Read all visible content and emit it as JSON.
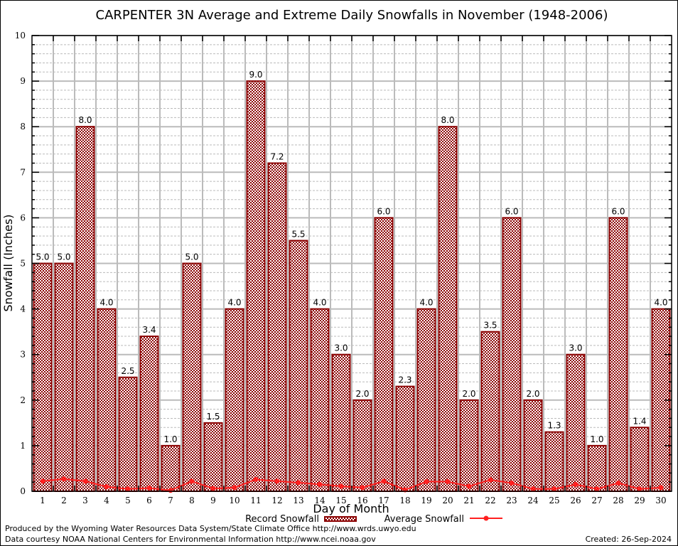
{
  "chart_data": {
    "type": "bar",
    "title": "CARPENTER 3N Average and Extreme Daily Snowfalls in November (1948-2006)",
    "xlabel": "Day of Month",
    "ylabel": "Snowfall (Inches)",
    "ylim": [
      0,
      10
    ],
    "yticks": [
      "0",
      "1",
      "2",
      "3",
      "4",
      "5",
      "6",
      "7",
      "8",
      "9",
      "10"
    ],
    "grid": true,
    "legend_position": "bottom",
    "categories": [
      "1",
      "2",
      "3",
      "4",
      "5",
      "6",
      "7",
      "8",
      "9",
      "10",
      "11",
      "12",
      "13",
      "14",
      "15",
      "16",
      "17",
      "18",
      "19",
      "20",
      "21",
      "22",
      "23",
      "24",
      "25",
      "26",
      "27",
      "28",
      "29",
      "30"
    ],
    "series": [
      {
        "name": "Record Snowfall",
        "type": "bar",
        "color": "#8b0000",
        "values": [
          5.0,
          5.0,
          8.0,
          4.0,
          2.5,
          3.4,
          1.0,
          5.0,
          1.5,
          4.0,
          9.0,
          7.2,
          5.5,
          4.0,
          3.0,
          2.0,
          6.0,
          2.3,
          4.0,
          8.0,
          2.0,
          3.5,
          6.0,
          2.0,
          1.3,
          3.0,
          1.0,
          6.0,
          1.4,
          4.0
        ],
        "labels": [
          "5.0",
          "5.0",
          "8.0",
          "4.0",
          "2.5",
          "3.4",
          "1.0",
          "5.0",
          "1.5",
          "4.0",
          "9.0",
          "7.2",
          "5.5",
          "4.0",
          "3.0",
          "2.0",
          "6.0",
          "2.3",
          "4.0",
          "8.0",
          "2.0",
          "3.5",
          "6.0",
          "2.0",
          "1.3",
          "3.0",
          "1.0",
          "6.0",
          "1.4",
          "4.0"
        ]
      },
      {
        "name": "Average Snowfall",
        "type": "line",
        "color": "#ff2020",
        "values": [
          0.22,
          0.27,
          0.22,
          0.1,
          0.05,
          0.07,
          0.02,
          0.22,
          0.06,
          0.08,
          0.26,
          0.22,
          0.19,
          0.15,
          0.11,
          0.08,
          0.22,
          0.03,
          0.21,
          0.21,
          0.11,
          0.25,
          0.18,
          0.05,
          0.05,
          0.15,
          0.05,
          0.18,
          0.05,
          0.08
        ]
      }
    ]
  },
  "footer": {
    "credit_line1": "Produced by the Wyoming Water Resources Data System/State Climate Office http://www.wrds.uwyo.edu",
    "credit_line2": "Data courtesy NOAA National Centers for Environmental Information http://www.ncei.noaa.gov",
    "created": "Created: 26-Sep-2024"
  }
}
